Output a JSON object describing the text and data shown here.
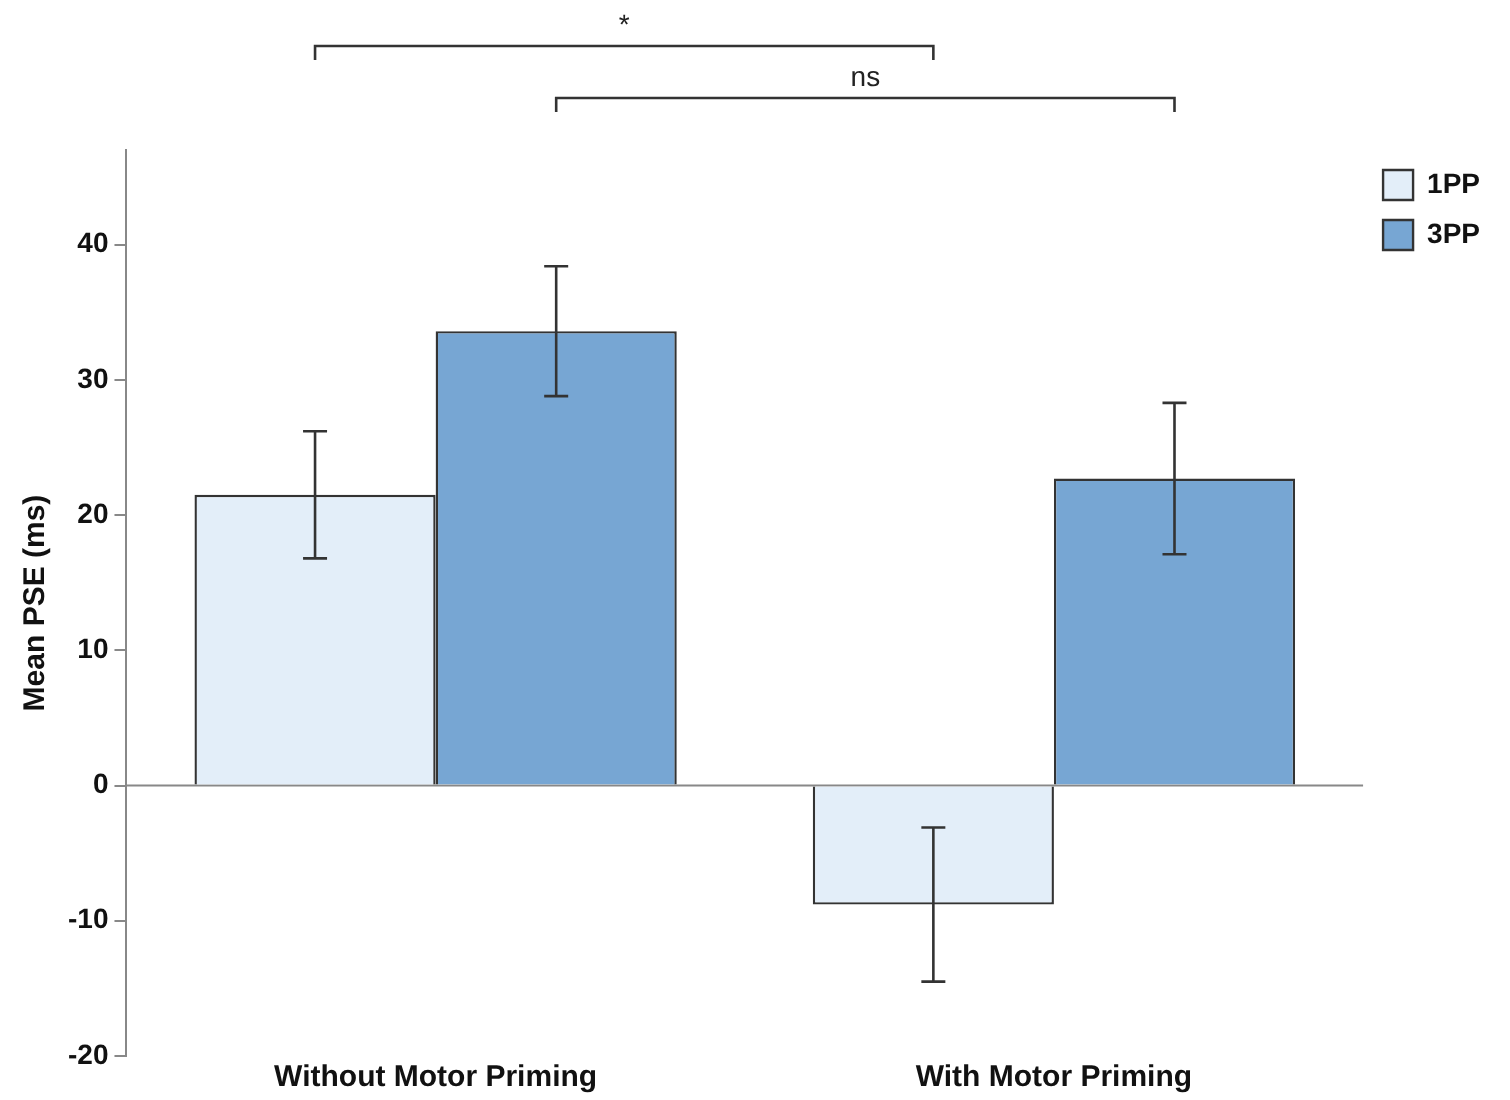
{
  "chart_data": {
    "type": "bar",
    "ylabel": "Mean PSE (ms)",
    "categories": [
      "Without Motor Priming",
      "With Motor Priming"
    ],
    "series": [
      {
        "name": "1PP",
        "color": "#e3eef9",
        "values": [
          21.5,
          -8.8
        ],
        "errors": [
          4.7,
          5.7
        ]
      },
      {
        "name": "3PP",
        "color": "#77a6d3",
        "values": [
          33.6,
          22.7
        ],
        "errors": [
          4.8,
          5.6
        ]
      }
    ],
    "ylim": [
      -20,
      47
    ],
    "yticks": [
      -20,
      -10,
      0,
      10,
      20,
      30,
      40
    ],
    "grid": false,
    "ref_lines": [
      {
        "axis": "y",
        "value": 0,
        "color": "#888888"
      }
    ],
    "legend": "top right",
    "annotations": [
      "*",
      "ns"
    ]
  }
}
